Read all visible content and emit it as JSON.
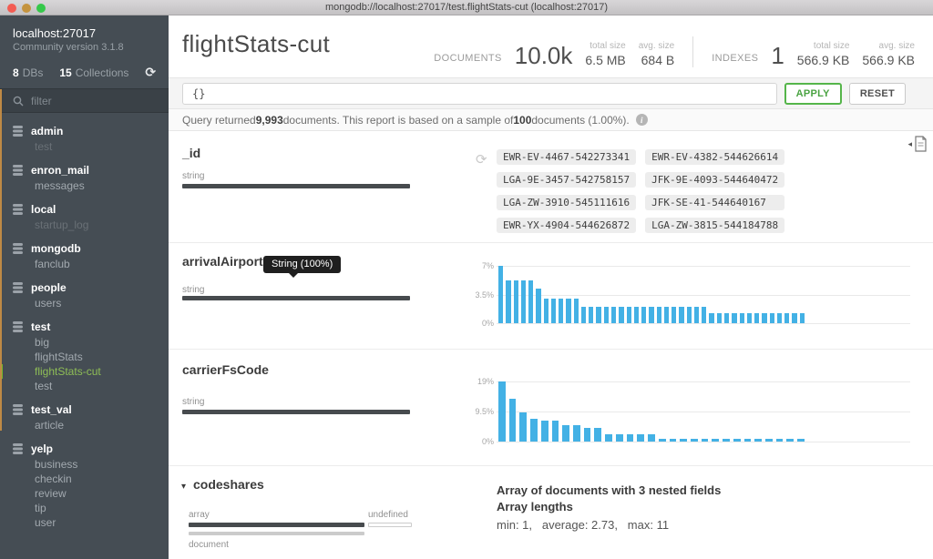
{
  "window": {
    "title": "mongodb://localhost:27017/test.flightStats-cut (localhost:27017)"
  },
  "sidebar": {
    "host": "localhost:27017",
    "version": "Community version 3.1.8",
    "db_count": "8",
    "db_label": "DBs",
    "coll_count": "15",
    "coll_label": "Collections",
    "filter_placeholder": "filter",
    "databases": [
      {
        "name": "admin",
        "collections": [
          {
            "name": "test",
            "dim": true
          }
        ]
      },
      {
        "name": "enron_mail",
        "collections": [
          {
            "name": "messages"
          }
        ]
      },
      {
        "name": "local",
        "collections": [
          {
            "name": "startup_log",
            "dim": true
          }
        ]
      },
      {
        "name": "mongodb",
        "collections": [
          {
            "name": "fanclub"
          }
        ]
      },
      {
        "name": "people",
        "collections": [
          {
            "name": "users"
          }
        ]
      },
      {
        "name": "test",
        "collections": [
          {
            "name": "big"
          },
          {
            "name": "flightStats"
          },
          {
            "name": "flightStats-cut",
            "selected": true
          },
          {
            "name": "test"
          }
        ]
      },
      {
        "name": "test_val",
        "collections": [
          {
            "name": "article"
          }
        ]
      },
      {
        "name": "yelp",
        "collections": [
          {
            "name": "business"
          },
          {
            "name": "checkin"
          },
          {
            "name": "review"
          },
          {
            "name": "tip"
          },
          {
            "name": "user"
          }
        ]
      }
    ]
  },
  "header": {
    "title": "flightStats-cut",
    "groups": [
      {
        "name": "documents",
        "label": "DOCUMENTS",
        "value": "10.0k",
        "subs": [
          {
            "label": "total size",
            "value": "6.5 MB"
          },
          {
            "label": "avg. size",
            "value": "684 B"
          }
        ]
      },
      {
        "name": "indexes",
        "label": "INDEXES",
        "value": "1",
        "subs": [
          {
            "label": "total size",
            "value": "566.9 KB"
          },
          {
            "label": "avg. size",
            "value": "566.9 KB"
          }
        ]
      }
    ]
  },
  "query": {
    "value": "{}",
    "apply_label": "APPLY",
    "reset_label": "RESET"
  },
  "sampling": {
    "t1": "Query returned ",
    "n1": "9,993",
    "t2": " documents. This report is based on a sample of ",
    "n2": "100",
    "t3": " documents (1.00%)."
  },
  "schema": {
    "fields": [
      {
        "name": "_id",
        "type": "string",
        "values": [
          "EWR-EV-4467-542273341",
          "EWR-EV-4382-544626614",
          "LGA-9E-3457-542758157",
          "JFK-9E-4093-544640472",
          "LGA-ZW-3910-545111616",
          "JFK-SE-41-544640167",
          "EWR-YX-4904-544626872",
          "LGA-ZW-3815-544184788"
        ]
      },
      {
        "name": "arrivalAirportF",
        "type": "string",
        "tooltip": "String (100%)"
      },
      {
        "name": "carrierFsCode",
        "type": "string"
      },
      {
        "name": "codeshares",
        "types": [
          {
            "label": "array"
          },
          {
            "label": "undefined"
          }
        ],
        "subtype_label": "document",
        "info_line1": "Array of documents with 3 nested fields",
        "info_line2": "Array lengths",
        "lengths": "min: 1,   average: 2.73,   max: 11"
      }
    ]
  },
  "chart_data": [
    {
      "type": "bar",
      "field": "arrivalAirportF",
      "color": "#43b1e5",
      "yticks": [
        "7%",
        "3.5%",
        "0%"
      ],
      "ymax": 7,
      "ylim": [
        0,
        7
      ],
      "grid": true,
      "legend": "none",
      "values": [
        7,
        5.2,
        5.2,
        5.2,
        5.2,
        4.2,
        3,
        3,
        3,
        3,
        3,
        2,
        2,
        2,
        2,
        2,
        2,
        2,
        2,
        2,
        2,
        2,
        2,
        2,
        2,
        2,
        2,
        2,
        1.2,
        1.2,
        1.2,
        1.2,
        1.2,
        1.2,
        1.2,
        1.2,
        1.2,
        1.2,
        1.2,
        1.2,
        1.2
      ]
    },
    {
      "type": "bar",
      "field": "carrierFsCode",
      "color": "#43b1e5",
      "yticks": [
        "19%",
        "9.5%",
        "0%"
      ],
      "ymax": 19,
      "ylim": [
        0,
        19
      ],
      "grid": true,
      "legend": "none",
      "values": [
        19,
        13.5,
        9.3,
        7.2,
        6.5,
        6.5,
        5.3,
        5.3,
        4.3,
        4.3,
        2.4,
        2.4,
        2.4,
        2.4,
        2.4,
        1,
        1,
        1,
        1,
        1,
        1,
        1,
        1,
        1,
        1,
        1,
        1,
        1,
        1
      ]
    }
  ]
}
